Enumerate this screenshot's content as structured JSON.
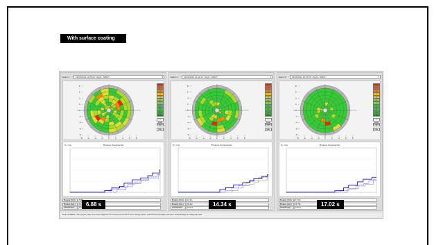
{
  "heading": "With surface coating",
  "footer_text": "OCULUS ARENA - This program does not produce diagnosis and should not be used to derive therapy without professional consultation with other clinical findings and diagnostic tests.",
  "panels": [
    {
      "exam_label": "Exam 1",
      "exam_value": "01/06/2014 12:35:28 - Right - NIBUT",
      "badge": "6.88 s",
      "stats": [
        {
          "label": "Breakup (First):",
          "value": "6.88s"
        },
        {
          "label": "Breakup (Avg.):",
          "value": "14.42s"
        },
        {
          "label": "Classification:",
          "value": "Level 0"
        }
      ],
      "scale": [
        "12.0",
        "10.5",
        "9.5",
        "8.5",
        "7.5",
        "6.5",
        "5.5",
        "4.5",
        "3.5",
        "2.5",
        "1.5"
      ],
      "buttons": [
        "< Level 0",
        "Details",
        "Max"
      ],
      "chart_title": "Breakup characteristic",
      "chart_y_label": "% / img",
      "map_green_bias": 0.45,
      "hot_cells": [
        [
          2,
          14
        ],
        [
          2,
          15
        ],
        [
          3,
          14
        ],
        [
          3,
          6
        ],
        [
          2,
          5
        ],
        [
          4,
          10
        ]
      ]
    },
    {
      "exam_label": "Exam 2",
      "exam_value": "01/06/2014 12:42:33 - Right - NIBUT",
      "badge": "14.34 s",
      "stats": [
        {
          "label": "Breakup (First):",
          "value": "14.34s"
        },
        {
          "label": "Breakup (Avg.):",
          "value": "18.21s"
        },
        {
          "label": "Classification:",
          "value": "Level 0"
        }
      ],
      "scale": [
        "12.0",
        "10.5",
        "9.5",
        "8.5",
        "7.5",
        "6.5",
        "5.5",
        "4.5",
        "3.5",
        "2.5",
        "1.5"
      ],
      "buttons": [
        "< Level 0",
        "Details",
        "Max"
      ],
      "chart_title": "Breakup characteristic",
      "chart_y_label": "% / img",
      "map_green_bias": 0.85,
      "hot_cells": [
        [
          2,
          2
        ],
        [
          2,
          3
        ],
        [
          3,
          4
        ]
      ]
    },
    {
      "exam_label": "Exam 3",
      "exam_value": "01/06/2014 12:51:55 - Right - NIBUT",
      "badge": "17.02 s",
      "stats": [
        {
          "label": "Breakup (First):",
          "value": "17.02s"
        },
        {
          "label": "Breakup (Avg.):",
          "value": "20.79s"
        },
        {
          "label": "Classification:",
          "value": "Level 0"
        }
      ],
      "scale": [
        "12.0",
        "10.5",
        "9.5",
        "8.5",
        "7.5",
        "6.5",
        "5.5",
        "4.5",
        "3.5",
        "2.5",
        "1.5"
      ],
      "buttons": [
        "< Level 0",
        "Details",
        "Max"
      ],
      "chart_title": "Breakup characteristic",
      "chart_y_label": "% / img",
      "map_green_bias": 0.9,
      "hot_cells": [
        [
          3,
          3
        ],
        [
          2,
          4
        ]
      ]
    }
  ],
  "colors": {
    "green": "#33cc33",
    "lightgreen": "#aadd22",
    "yellow": "#dddd33",
    "orange": "#ff8800",
    "red": "#ff2200",
    "gray": "#b4b4b4",
    "series_dark": "#1a1aaa",
    "series_light": "#8888cc"
  }
}
